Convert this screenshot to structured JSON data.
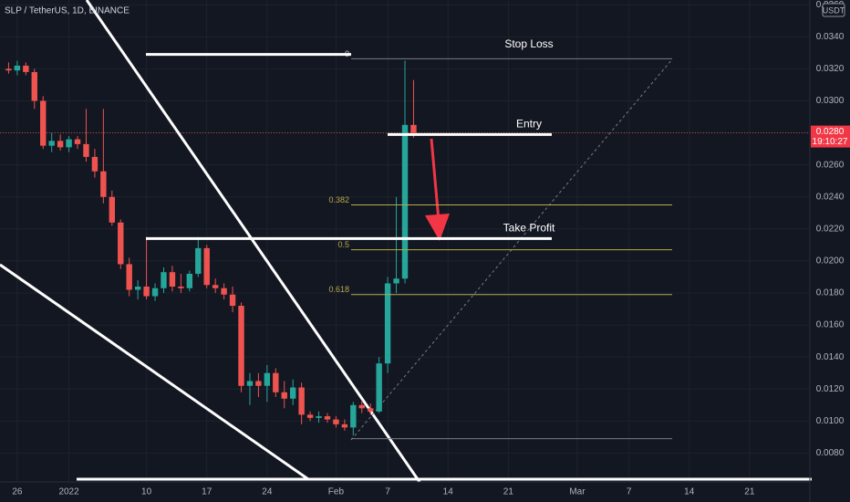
{
  "chart_data": {
    "type": "candlestick",
    "title": "SLP / TetherUS, 1D, BINANCE",
    "currency": "USDT",
    "x": [
      "2021-12-25",
      "2021-12-26",
      "2021-12-27",
      "2021-12-28",
      "2021-12-29",
      "2021-12-30",
      "2021-12-31",
      "2022-01-01",
      "2022-01-02",
      "2022-01-03",
      "2022-01-04",
      "2022-01-05",
      "2022-01-06",
      "2022-01-07",
      "2022-01-08",
      "2022-01-09",
      "2022-01-10",
      "2022-01-11",
      "2022-01-12",
      "2022-01-13",
      "2022-01-14",
      "2022-01-15",
      "2022-01-16",
      "2022-01-17",
      "2022-01-18",
      "2022-01-19",
      "2022-01-20",
      "2022-01-21",
      "2022-01-22",
      "2022-01-23",
      "2022-01-24",
      "2022-01-25",
      "2022-01-26",
      "2022-01-27",
      "2022-01-28",
      "2022-01-29",
      "2022-01-30",
      "2022-01-31",
      "2022-02-01",
      "2022-02-02",
      "2022-02-03",
      "2022-02-04",
      "2022-02-05",
      "2022-02-06",
      "2022-02-07",
      "2022-02-08",
      "2022-02-09",
      "2022-02-10"
    ],
    "open": [
      0.032,
      0.0319,
      0.0322,
      0.0318,
      0.03,
      0.0272,
      0.0275,
      0.0271,
      0.0276,
      0.0273,
      0.0265,
      0.0256,
      0.024,
      0.0224,
      0.0198,
      0.0182,
      0.0184,
      0.0178,
      0.0183,
      0.0193,
      0.0184,
      0.0183,
      0.0192,
      0.0208,
      0.0185,
      0.0183,
      0.0179,
      0.0172,
      0.0122,
      0.0125,
      0.0122,
      0.013,
      0.0118,
      0.0114,
      0.0121,
      0.0104,
      0.0102,
      0.0103,
      0.0101,
      0.0098,
      0.0096,
      0.011,
      0.0108,
      0.0106,
      0.0136,
      0.0186,
      0.0189,
      0.0285
    ],
    "high": [
      0.0324,
      0.0325,
      0.0324,
      0.032,
      0.0303,
      0.028,
      0.0279,
      0.0278,
      0.0278,
      0.0295,
      0.027,
      0.0295,
      0.0244,
      0.0226,
      0.0202,
      0.0188,
      0.0215,
      0.0186,
      0.0196,
      0.0197,
      0.0192,
      0.0194,
      0.0215,
      0.021,
      0.0189,
      0.0186,
      0.0184,
      0.0174,
      0.013,
      0.013,
      0.0135,
      0.0133,
      0.0125,
      0.0126,
      0.0124,
      0.0106,
      0.0106,
      0.0105,
      0.0103,
      0.0101,
      0.0112,
      0.0113,
      0.0111,
      0.014,
      0.019,
      0.024,
      0.0325,
      0.0313
    ],
    "low": [
      0.0317,
      0.0316,
      0.0316,
      0.0295,
      0.027,
      0.0268,
      0.0269,
      0.0268,
      0.027,
      0.0262,
      0.0252,
      0.0236,
      0.0222,
      0.0195,
      0.0178,
      0.0176,
      0.0176,
      0.0175,
      0.018,
      0.0181,
      0.018,
      0.0181,
      0.019,
      0.0183,
      0.018,
      0.0176,
      0.0168,
      0.0118,
      0.011,
      0.0115,
      0.0112,
      0.0115,
      0.0108,
      0.011,
      0.0098,
      0.01,
      0.0099,
      0.0099,
      0.0096,
      0.0094,
      0.0091,
      0.0105,
      0.0104,
      0.0105,
      0.013,
      0.018,
      0.0186,
      0.0277
    ],
    "close": [
      0.0319,
      0.0322,
      0.0318,
      0.03,
      0.0272,
      0.0275,
      0.0271,
      0.0276,
      0.0273,
      0.0265,
      0.0256,
      0.024,
      0.0224,
      0.0198,
      0.0182,
      0.0184,
      0.0178,
      0.0183,
      0.0193,
      0.0184,
      0.0183,
      0.0192,
      0.0208,
      0.0185,
      0.0183,
      0.0179,
      0.0172,
      0.0122,
      0.0125,
      0.0122,
      0.013,
      0.0118,
      0.0114,
      0.0121,
      0.0104,
      0.0102,
      0.0103,
      0.0101,
      0.0098,
      0.0096,
      0.011,
      0.0108,
      0.0106,
      0.0136,
      0.0186,
      0.0189,
      0.0285,
      0.028
    ],
    "up_color": "#26a69a",
    "down_color": "#ef5350",
    "xlim": [
      "2021-12-24",
      "2022-03-28"
    ],
    "ylim": [
      0.0062,
      0.0363
    ],
    "xticks": [
      {
        "value": "2021-12-26",
        "label": "26"
      },
      {
        "value": "2022-01-01",
        "label": "2022"
      },
      {
        "value": "2022-01-10",
        "label": "10"
      },
      {
        "value": "2022-01-17",
        "label": "17"
      },
      {
        "value": "2022-01-24",
        "label": "24"
      },
      {
        "value": "2022-02-01",
        "label": "Feb"
      },
      {
        "value": "2022-02-07",
        "label": "7"
      },
      {
        "value": "2022-02-14",
        "label": "14"
      },
      {
        "value": "2022-02-21",
        "label": "21"
      },
      {
        "value": "2022-03-01",
        "label": "Mar"
      },
      {
        "value": "2022-03-07",
        "label": "7"
      },
      {
        "value": "2022-03-14",
        "label": "14"
      },
      {
        "value": "2022-03-21",
        "label": "21"
      }
    ],
    "yticks": [
      {
        "value": 0.008,
        "label": "0.0080"
      },
      {
        "value": 0.01,
        "label": "0.0100"
      },
      {
        "value": 0.012,
        "label": "0.0120"
      },
      {
        "value": 0.014,
        "label": "0.0140"
      },
      {
        "value": 0.016,
        "label": "0.0160"
      },
      {
        "value": 0.018,
        "label": "0.0180"
      },
      {
        "value": 0.02,
        "label": "0.0200"
      },
      {
        "value": 0.022,
        "label": "0.0220"
      },
      {
        "value": 0.024,
        "label": "0.0240"
      },
      {
        "value": 0.026,
        "label": "0.0260"
      },
      {
        "value": 0.028,
        "label": "0.0280"
      },
      {
        "value": 0.03,
        "label": "0.0300"
      },
      {
        "value": 0.032,
        "label": "0.0320"
      },
      {
        "value": 0.034,
        "label": "0.0340"
      },
      {
        "value": 0.036,
        "label": "0.0360"
      }
    ],
    "grid": true,
    "last_price": {
      "value": 0.028,
      "label": "0.0280"
    },
    "countdown": "19:10:27",
    "levels": [
      {
        "name": "Stop Loss",
        "value": 0.0329
      },
      {
        "name": "Entry",
        "value": 0.0279
      },
      {
        "name": "Take Profit",
        "value": 0.0214
      }
    ],
    "fib": [
      {
        "label": "0",
        "value": 0.03263
      },
      {
        "label": "0.382",
        "value": 0.0235
      },
      {
        "label": "0.5",
        "value": 0.0207
      },
      {
        "label": "0.618",
        "value": 0.0179
      },
      {
        "value": 0.0089
      }
    ]
  }
}
